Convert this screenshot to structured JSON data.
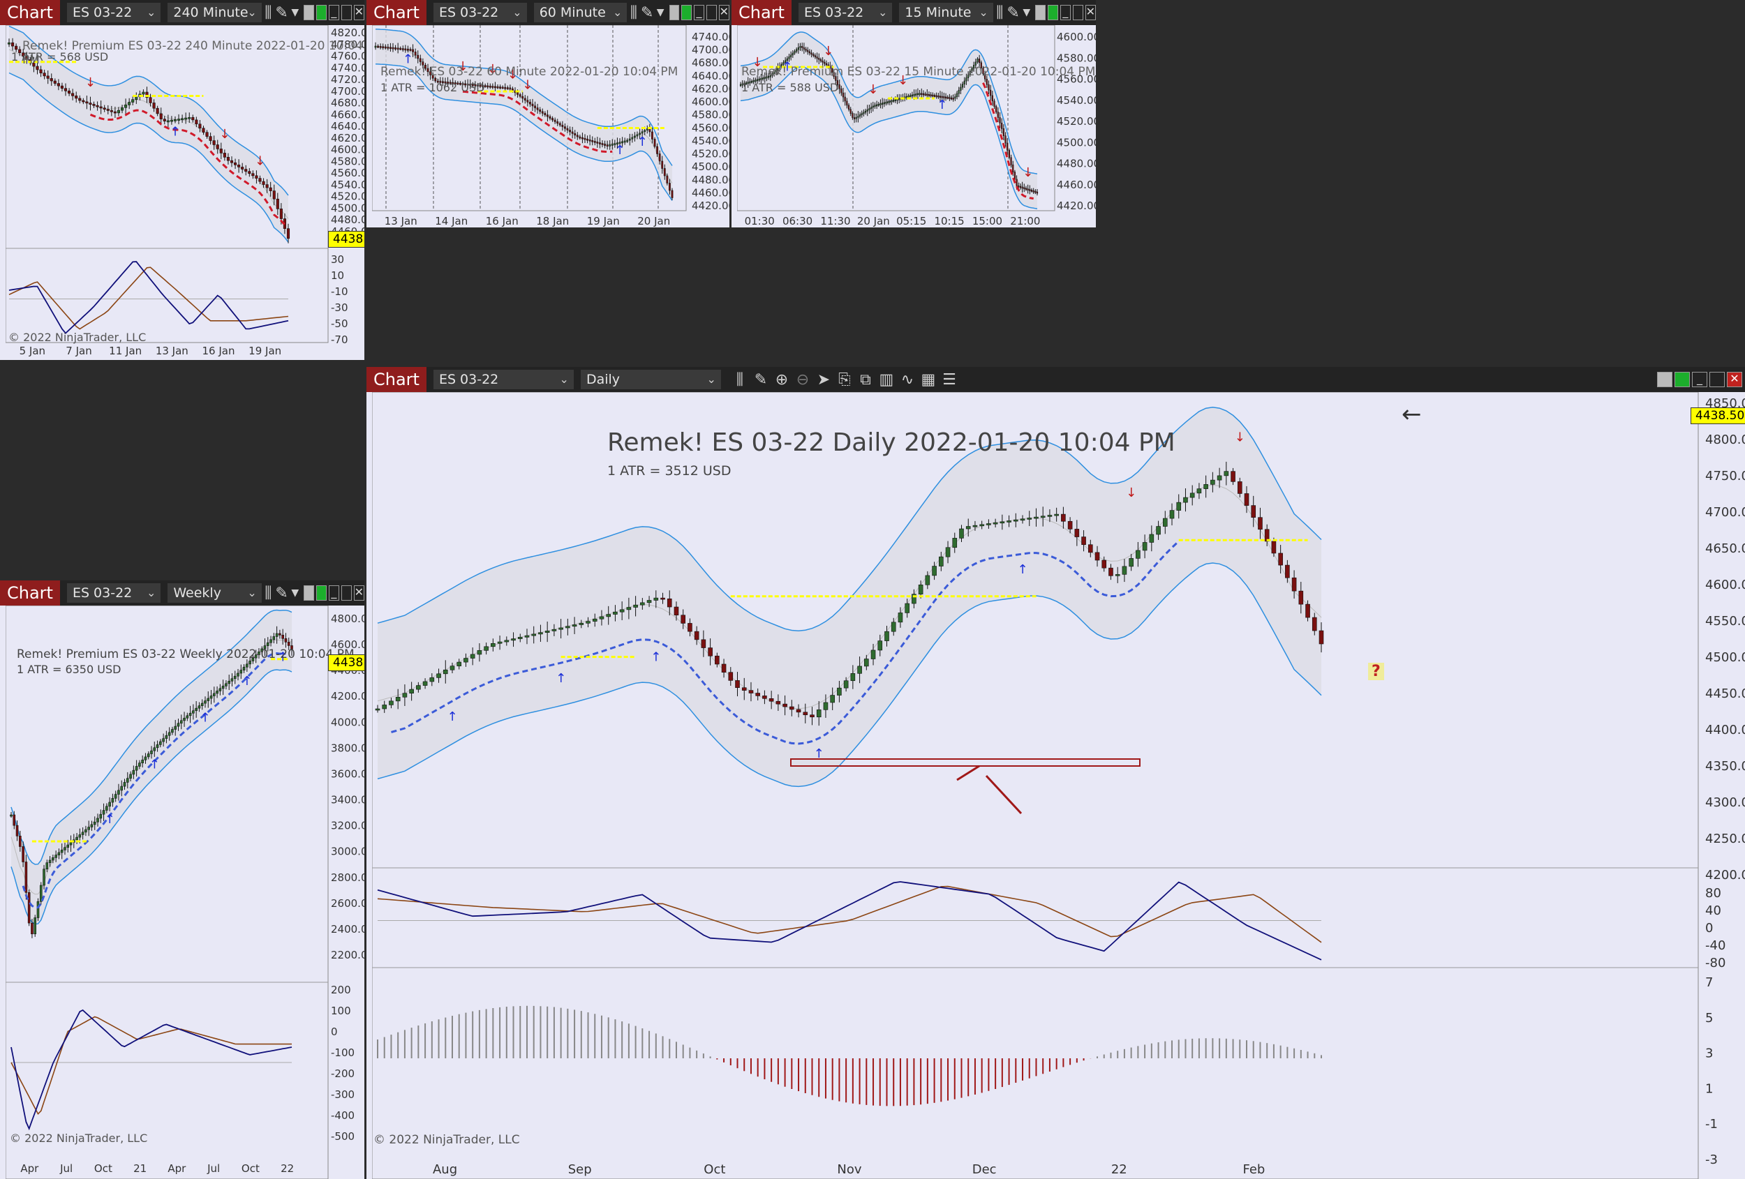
{
  "window_label": "Chart",
  "instrument": "ES 03-22",
  "last_price": "4438.50",
  "copyright": "© 2022 NinjaTrader, LLC",
  "charts": {
    "c240": {
      "interval": "240 Minute",
      "title": "Remek!  Premium  ES 03-22  240 Minute  2022-01-20 10:04 PM",
      "atr": "1 ATR = 568 USD",
      "y_ticks": [
        "4820.00",
        "4780.00",
        "4760.00",
        "4740.00",
        "4720.00",
        "4700.00",
        "4680.00",
        "4660.00",
        "4640.00",
        "4620.00",
        "4600.00",
        "4580.00",
        "4560.00",
        "4540.00",
        "4520.00",
        "4500.00",
        "4480.00",
        "4460.00"
      ],
      "osc_ticks": [
        "30",
        "10",
        "-10",
        "-30",
        "-50",
        "-70"
      ],
      "x_ticks": [
        "5 Jan",
        "7 Jan",
        "11 Jan",
        "13 Jan",
        "16 Jan",
        "19 Jan"
      ]
    },
    "c60": {
      "interval": "60 Minute",
      "title": "Remek!  ES 03-22  60 Minute  2022-01-20 10:04 PM",
      "atr": "1 ATR = 1062 USD",
      "y_ticks": [
        "4740.00",
        "4700.00",
        "4680.00",
        "4640.00",
        "4620.00",
        "4600.00",
        "4580.00",
        "4560.00",
        "4540.00",
        "4520.00",
        "4500.00",
        "4480.00",
        "4460.00",
        "4420.00"
      ],
      "x_ticks": [
        "13 Jan",
        "14 Jan",
        "16 Jan",
        "18 Jan",
        "19 Jan",
        "20 Jan"
      ]
    },
    "c15": {
      "interval": "15 Minute",
      "title": "Remek!  Premium  ES 03-22  15 Minute  2022-01-20 10:04 PM",
      "atr": "1 ATR = 588 USD",
      "y_ticks": [
        "4600.00",
        "4580.00",
        "4560.00",
        "4540.00",
        "4520.00",
        "4500.00",
        "4480.00",
        "4460.00",
        "4420.00"
      ],
      "x_ticks": [
        "01:30",
        "06:30",
        "11:30",
        "20 Jan",
        "05:15",
        "10:15",
        "15:00",
        "21:00"
      ]
    },
    "weekly": {
      "interval": "Weekly",
      "title": "Remek!  Premium  ES 03-22  Weekly  2022-01-20 10:04 PM",
      "atr": "1 ATR = 6350 USD",
      "y_ticks": [
        "4800.00",
        "4600.00",
        "4400.00",
        "4200.00",
        "4000.00",
        "3800.00",
        "3600.00",
        "3400.00",
        "3200.00",
        "3000.00",
        "2800.00",
        "2600.00",
        "2400.00",
        "2200.00"
      ],
      "osc_ticks": [
        "200",
        "100",
        "0",
        "-100",
        "-200",
        "-300",
        "-400",
        "-500"
      ],
      "x_ticks": [
        "Apr",
        "Jul",
        "Oct",
        "21",
        "Apr",
        "Jul",
        "Oct",
        "22"
      ]
    },
    "daily": {
      "interval": "Daily",
      "title": "Remek!  ES 03-22  Daily  2022-01-20 10:04 PM",
      "atr": "1 ATR = 3512 USD",
      "y_ticks": [
        "4850.00",
        "4800.00",
        "4750.00",
        "4700.00",
        "4650.00",
        "4600.00",
        "4550.00",
        "4500.00",
        "4450.00",
        "4400.00",
        "4350.00",
        "4300.00",
        "4250.00",
        "4200.00"
      ],
      "osc_ticks": [
        "80",
        "40",
        "0",
        "-40",
        "-80"
      ],
      "hist_ticks": [
        "7",
        "5",
        "3",
        "1",
        "-1",
        "-3"
      ],
      "x_ticks": [
        "Aug",
        "Sep",
        "Oct",
        "Nov",
        "Dec",
        "22",
        "Feb"
      ],
      "annotation": "?"
    }
  },
  "colors": {
    "background": "#e8e8f6",
    "band_line": "#2e8fe0",
    "band_fill": "#dcdce6",
    "down_trend": "#d01a2a",
    "up_trend": "#3b5bd8",
    "support": "#ffff00",
    "candle_up": "#2f6b2f",
    "candle_down": "#7a1010",
    "osc_fast": "#10107a",
    "osc_slow": "#8b4513",
    "chart_tag": "#8f1d1d"
  }
}
